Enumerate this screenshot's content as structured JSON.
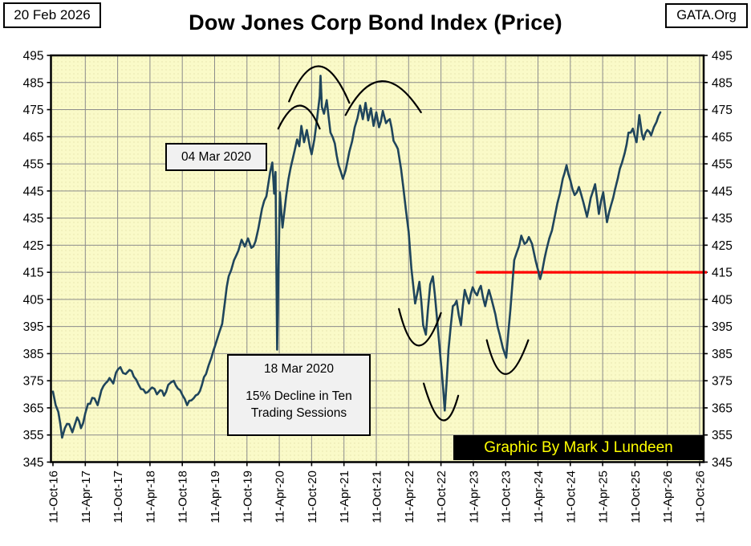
{
  "header": {
    "date_box": "20 Feb 2026",
    "source_box": "GATA.Org",
    "title": "Dow Jones Corp Bond Index (Price)"
  },
  "annotations": {
    "peak_label": "04 Mar 2020",
    "decline_line1": "18 Mar 2020",
    "decline_line2": "15% Decline in Ten",
    "decline_line3": "Trading Sessions",
    "credit_badge": "Graphic By Mark J Lundeen"
  },
  "colors": {
    "plot_background": "#FAFAC8",
    "plot_dot_texture": "#DCD89E",
    "grid": "#8C8C8C",
    "frame": "#000000",
    "price_line": "#1F455C",
    "reference_line": "#FF0000",
    "badge_background": "#000000",
    "badge_text": "#FFFF00",
    "annotation_box_background": "#F1F1F1"
  },
  "chart_data": {
    "type": "line",
    "title": "Dow Jones Corp Bond Index (Price)",
    "xlabel": "",
    "ylabel": "",
    "ylim": [
      345,
      495
    ],
    "ytick_step": 10,
    "yticks_left": [
      495,
      485,
      475,
      465,
      455,
      445,
      435,
      425,
      415,
      405,
      395,
      385,
      375,
      365,
      355,
      345
    ],
    "yticks_right": [
      495,
      485,
      475,
      465,
      455,
      445,
      435,
      425,
      415,
      405,
      395,
      385,
      375,
      365,
      355,
      345
    ],
    "xticks": [
      "11-Oct-16",
      "11-Apr-17",
      "11-Oct-17",
      "11-Apr-18",
      "11-Oct-18",
      "11-Apr-19",
      "11-Oct-19",
      "11-Apr-20",
      "11-Oct-20",
      "11-Apr-21",
      "11-Oct-21",
      "11-Apr-22",
      "11-Oct-22",
      "11-Apr-23",
      "11-Oct-23",
      "11-Apr-24",
      "11-Oct-24",
      "11-Apr-25",
      "11-Oct-25",
      "11-Apr-26",
      "11-Oct-26"
    ],
    "months_per_tick": 6,
    "grid": true,
    "legend": "none",
    "series": [
      {
        "name": "Dow Jones Corp Bond Index (Price)",
        "note": "points are [months since 11-Oct-2016, index value]",
        "points": [
          [
            0,
            371
          ],
          [
            0.5,
            366
          ],
          [
            1,
            363.5
          ],
          [
            1.7,
            354
          ],
          [
            2.2,
            357.5
          ],
          [
            3,
            359
          ],
          [
            3.6,
            356
          ],
          [
            4.5,
            361.5
          ],
          [
            5.2,
            357.5
          ],
          [
            6,
            363
          ],
          [
            6.5,
            366.5
          ],
          [
            7.7,
            368.5
          ],
          [
            8.3,
            366
          ],
          [
            9,
            371.5
          ],
          [
            10.5,
            376
          ],
          [
            11.2,
            374
          ],
          [
            11.7,
            378
          ],
          [
            12.5,
            380
          ],
          [
            13.5,
            377.5
          ],
          [
            14.2,
            379
          ],
          [
            15,
            376.5
          ],
          [
            15.9,
            373.5
          ],
          [
            17.2,
            370.5
          ],
          [
            18.4,
            372.5
          ],
          [
            19.3,
            370
          ],
          [
            19.9,
            371.5
          ],
          [
            20.6,
            369.5
          ],
          [
            21.4,
            373.5
          ],
          [
            22.4,
            375
          ],
          [
            23.6,
            371.5
          ],
          [
            24.9,
            366
          ],
          [
            26.1,
            368.5
          ],
          [
            26.9,
            370
          ],
          [
            28.4,
            377.5
          ],
          [
            29.4,
            383.5
          ],
          [
            30.1,
            388
          ],
          [
            30.8,
            392.5
          ],
          [
            31.4,
            396
          ],
          [
            31.9,
            404
          ],
          [
            32.6,
            413.5
          ],
          [
            33.6,
            419.5
          ],
          [
            34.4,
            423
          ],
          [
            35,
            427
          ],
          [
            35.6,
            424.5
          ],
          [
            36.2,
            427.5
          ],
          [
            36.8,
            424
          ],
          [
            37.6,
            426.5
          ],
          [
            38.1,
            431
          ],
          [
            38.8,
            438.5
          ],
          [
            39.6,
            443
          ],
          [
            40.3,
            452
          ],
          [
            40.7,
            455.5
          ],
          [
            41.05,
            444
          ],
          [
            41.3,
            452
          ],
          [
            41.6,
            386.5
          ],
          [
            42.1,
            444.5
          ],
          [
            42.6,
            431.5
          ],
          [
            43.3,
            443.5
          ],
          [
            44.1,
            453.5
          ],
          [
            44.8,
            459.5
          ],
          [
            45.3,
            464
          ],
          [
            45.7,
            461.5
          ],
          [
            46.1,
            469
          ],
          [
            46.6,
            463
          ],
          [
            47.1,
            467.5
          ],
          [
            47.7,
            461
          ],
          [
            48,
            458.5
          ],
          [
            48.5,
            464
          ],
          [
            49,
            471.5
          ],
          [
            49.5,
            480
          ],
          [
            49.65,
            487.5
          ],
          [
            49.9,
            476
          ],
          [
            50.3,
            473.5
          ],
          [
            50.8,
            478.5
          ],
          [
            51.5,
            466.5
          ],
          [
            52.3,
            462.5
          ],
          [
            53,
            454.5
          ],
          [
            53.8,
            449.5
          ],
          [
            54.3,
            452.5
          ],
          [
            55,
            459.5
          ],
          [
            56,
            468.5
          ],
          [
            57,
            476.5
          ],
          [
            57.5,
            471.5
          ],
          [
            58,
            477.5
          ],
          [
            58.5,
            471
          ],
          [
            59,
            475.5
          ],
          [
            59.5,
            469
          ],
          [
            60,
            474
          ],
          [
            60.5,
            468.5
          ],
          [
            61.2,
            474.5
          ],
          [
            61.8,
            470
          ],
          [
            62.5,
            471.5
          ],
          [
            63.2,
            463.5
          ],
          [
            64,
            460.5
          ],
          [
            64.6,
            453
          ],
          [
            65,
            446.5
          ],
          [
            65.5,
            438
          ],
          [
            66,
            430
          ],
          [
            66.5,
            416.5
          ],
          [
            67.2,
            403.5
          ],
          [
            68,
            411.5
          ],
          [
            68.7,
            395.5
          ],
          [
            69.2,
            392
          ],
          [
            70,
            410.5
          ],
          [
            70.5,
            413.5
          ],
          [
            71.2,
            399.5
          ],
          [
            72,
            381.5
          ],
          [
            72.7,
            364
          ],
          [
            73.4,
            386.5
          ],
          [
            74.2,
            402.5
          ],
          [
            74.9,
            404.5
          ],
          [
            75.7,
            395.5
          ],
          [
            76.4,
            408.5
          ],
          [
            77.2,
            403.5
          ],
          [
            77.9,
            409.5
          ],
          [
            78.7,
            406.5
          ],
          [
            79.4,
            410
          ],
          [
            80.2,
            402.5
          ],
          [
            80.9,
            408.5
          ],
          [
            81.4,
            405
          ],
          [
            82.1,
            399.5
          ],
          [
            82.9,
            392
          ],
          [
            83.5,
            387
          ],
          [
            84.1,
            383.5
          ],
          [
            84.9,
            401.5
          ],
          [
            85.6,
            419.5
          ],
          [
            86.1,
            422.5
          ],
          [
            86.9,
            428.5
          ],
          [
            87.5,
            425.5
          ],
          [
            88.3,
            428
          ],
          [
            88.9,
            425.5
          ],
          [
            89.6,
            419
          ],
          [
            90.4,
            412.5
          ],
          [
            91.6,
            423.5
          ],
          [
            92.6,
            430.5
          ],
          [
            93.6,
            440.5
          ],
          [
            94.6,
            449.5
          ],
          [
            95.3,
            454.5
          ],
          [
            96,
            449
          ],
          [
            96.8,
            443.5
          ],
          [
            97.6,
            446.5
          ],
          [
            98.4,
            441
          ],
          [
            99.1,
            435.5
          ],
          [
            99.8,
            442.5
          ],
          [
            100.6,
            447.5
          ],
          [
            101.3,
            436.5
          ],
          [
            102.1,
            444.5
          ],
          [
            102.8,
            433.5
          ],
          [
            103.6,
            440
          ],
          [
            104.3,
            445.5
          ],
          [
            104.8,
            449.5
          ],
          [
            105.6,
            455.5
          ],
          [
            106.1,
            459
          ],
          [
            106.8,
            466.5
          ],
          [
            107.6,
            468
          ],
          [
            108.3,
            463
          ],
          [
            108.8,
            473
          ],
          [
            109.3,
            466
          ],
          [
            109.6,
            464
          ],
          [
            110.3,
            467.5
          ],
          [
            111,
            465.5
          ],
          [
            111.5,
            468.5
          ],
          [
            112,
            470.5
          ],
          [
            112.7,
            474
          ]
        ]
      }
    ],
    "reference_line": {
      "value": 415,
      "from_month": 78.5,
      "extends_to_right_frame": true
    },
    "drawn_arcs_over_tops": [
      {
        "start": [
          41.8,
          468
        ],
        "apex": [
          45.8,
          476.5
        ],
        "end": [
          49.5,
          468
        ]
      },
      {
        "start": [
          43.8,
          478
        ],
        "apex": [
          49.3,
          491
        ],
        "end": [
          55,
          477.5
        ]
      },
      {
        "start": [
          54.3,
          473
        ],
        "apex": [
          61,
          485.5
        ],
        "end": [
          68.3,
          474
        ]
      }
    ],
    "drawn_arcs_under_bottoms": [
      {
        "start": [
          64.2,
          401.5
        ],
        "apex": [
          67.8,
          388
        ],
        "end": [
          72,
          400
        ]
      },
      {
        "start": [
          68.8,
          374
        ],
        "apex": [
          72.2,
          360.5
        ],
        "end": [
          75.2,
          369.5
        ]
      },
      {
        "start": [
          80.5,
          390
        ],
        "apex": [
          84,
          377.5
        ],
        "end": [
          88.2,
          390
        ]
      }
    ]
  }
}
